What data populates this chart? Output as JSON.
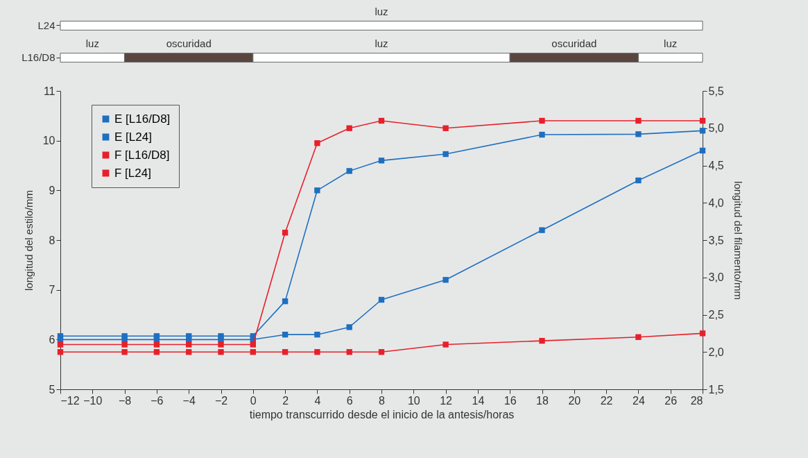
{
  "chart_data": [
    {
      "type": "bar",
      "orientation": "horizontal",
      "categories": [
        "L24",
        "L16/D8"
      ],
      "xlim": [
        -12,
        28
      ],
      "tick_labels": "y",
      "series": [
        {
          "name": "luz",
          "color": "#ffffff",
          "values": [
            40,
            4
          ],
          "base": [
            -12,
            -12
          ]
        },
        {
          "name": "oscuridad",
          "color": "#5a4540",
          "values": [
            null,
            8
          ],
          "base": [
            null,
            -8
          ]
        },
        {
          "name": "luz",
          "color": "#ffffff",
          "values": [
            null,
            16
          ],
          "base": [
            null,
            0
          ]
        },
        {
          "name": "oscuridad",
          "color": "#5a4540",
          "values": [
            null,
            8
          ],
          "base": [
            null,
            16
          ]
        },
        {
          "name": "luz",
          "color": "#ffffff",
          "values": [
            null,
            4
          ],
          "base": [
            null,
            24
          ]
        }
      ]
    },
    {
      "type": "line",
      "xlabel": "tiempo transcurrido desde el inicio de la antesis/horas",
      "ylabel": "longitud del estilo/mm",
      "y2label": "longitud del filamento/mm",
      "marker": "square",
      "legend": "top left",
      "grid": false,
      "x": [
        -12,
        -8,
        -6,
        -4,
        -2,
        0,
        2,
        4,
        6,
        8,
        12,
        18,
        24,
        28
      ],
      "xlim": [
        -12,
        28
      ],
      "xticks": [
        {
          "value": -12,
          "label": "−12"
        },
        {
          "value": -10,
          "label": "−10"
        },
        {
          "value": -8,
          "label": "−8"
        },
        {
          "value": -6,
          "label": "−6"
        },
        {
          "value": -4,
          "label": "−4"
        },
        {
          "value": -2,
          "label": "−2"
        },
        0,
        2,
        4,
        6,
        8,
        10,
        12,
        14,
        16,
        18,
        20,
        22,
        24,
        26,
        28
      ],
      "ylim": [
        5,
        11
      ],
      "yticks": [
        5,
        6,
        7,
        8,
        9,
        10,
        11
      ],
      "y2lim": [
        1.5,
        5.5
      ],
      "y2ticks": [
        {
          "value": 1.5,
          "label": "1,5"
        },
        {
          "value": 2,
          "label": "2,0"
        },
        {
          "value": 2.5,
          "label": "2,5"
        },
        {
          "value": 3,
          "label": "3,0"
        },
        {
          "value": 3.5,
          "label": "3,5"
        },
        {
          "value": 4,
          "label": "4,0"
        },
        {
          "value": 4.5,
          "label": "4,5"
        },
        {
          "value": 5,
          "label": "5,0"
        },
        {
          "value": 5.5,
          "label": "5,5"
        }
      ],
      "series": [
        {
          "name": "E [L16/D8]",
          "color": "#1f6fc0",
          "values": [
            6.07,
            6.07,
            6.07,
            6.07,
            6.07,
            6.07,
            6.77,
            9.0,
            9.39,
            9.6,
            9.73,
            10.12,
            10.13,
            10.2
          ]
        },
        {
          "name": "E [L24]",
          "color": "#1f6fc0",
          "values": [
            6.0,
            6.0,
            6.0,
            6.0,
            6.0,
            6.0,
            6.1,
            6.1,
            6.25,
            6.8,
            7.2,
            8.2,
            9.2,
            9.8
          ]
        },
        {
          "name": "F [L16/D8]",
          "color": "#e8202a",
          "axis": "y2",
          "values": [
            2.1,
            2.1,
            2.1,
            2.1,
            2.1,
            2.1,
            3.6,
            4.8,
            5.0,
            5.1,
            5.0,
            5.1,
            5.1,
            5.1
          ]
        },
        {
          "name": "F [L24]",
          "color": "#e8202a",
          "axis": "y2",
          "values": [
            2.0,
            2.0,
            2.0,
            2.0,
            2.0,
            2.0,
            2.0,
            2.0,
            2.0,
            2.0,
            2.1,
            2.15,
            2.2,
            2.25
          ]
        }
      ]
    }
  ]
}
